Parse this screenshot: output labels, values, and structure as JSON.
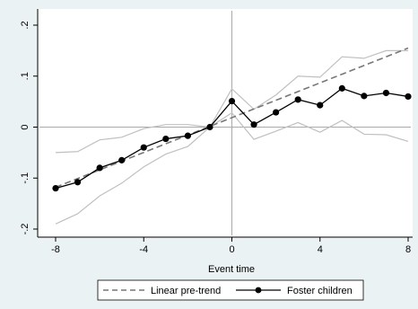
{
  "chart_data": {
    "type": "line",
    "title": "",
    "xlabel": "Event time",
    "ylabel": "",
    "xlim": [
      -8,
      8
    ],
    "ylim": [
      -0.2,
      0.2
    ],
    "x_ticks": [
      -8,
      -4,
      0,
      4,
      8
    ],
    "x_tick_labels": [
      "-8",
      "-4",
      "0",
      "4",
      "8"
    ],
    "y_ticks": [
      -0.2,
      -0.1,
      0,
      0.1,
      0.2
    ],
    "y_tick_labels": [
      "-.2",
      "-.1",
      "0",
      ".1",
      ".2"
    ],
    "grid": false,
    "reference_lines": {
      "x": 0,
      "y": 0
    },
    "legend_position": "bottom",
    "x": [
      -8,
      -7,
      -6,
      -5,
      -4,
      -3,
      -2,
      -1,
      0,
      1,
      2,
      3,
      4,
      5,
      6,
      7,
      8
    ],
    "series": [
      {
        "name": "Linear pre-trend",
        "style": "dashed",
        "color": "#777777",
        "x": [
          -8,
          8
        ],
        "values": [
          -0.118,
          0.155
        ]
      },
      {
        "name": "Foster children",
        "style": "solid-markers",
        "color": "#000000",
        "values": [
          -0.12,
          -0.108,
          -0.08,
          -0.065,
          -0.04,
          -0.023,
          -0.017,
          0.0,
          0.051,
          0.005,
          0.029,
          0.054,
          0.043,
          0.076,
          0.061,
          0.067,
          0.06
        ]
      }
    ],
    "confidence_band": {
      "color": "#c0c0c0",
      "upper": [
        -0.05,
        -0.048,
        -0.025,
        -0.02,
        -0.003,
        0.005,
        0.005,
        0.0,
        0.075,
        0.035,
        0.063,
        0.1,
        0.098,
        0.138,
        0.135,
        0.15,
        0.15
      ],
      "lower": [
        -0.19,
        -0.17,
        -0.135,
        -0.11,
        -0.078,
        -0.053,
        -0.038,
        0.0,
        0.028,
        -0.024,
        -0.008,
        0.009,
        -0.01,
        0.013,
        -0.014,
        -0.015,
        -0.028
      ]
    }
  }
}
